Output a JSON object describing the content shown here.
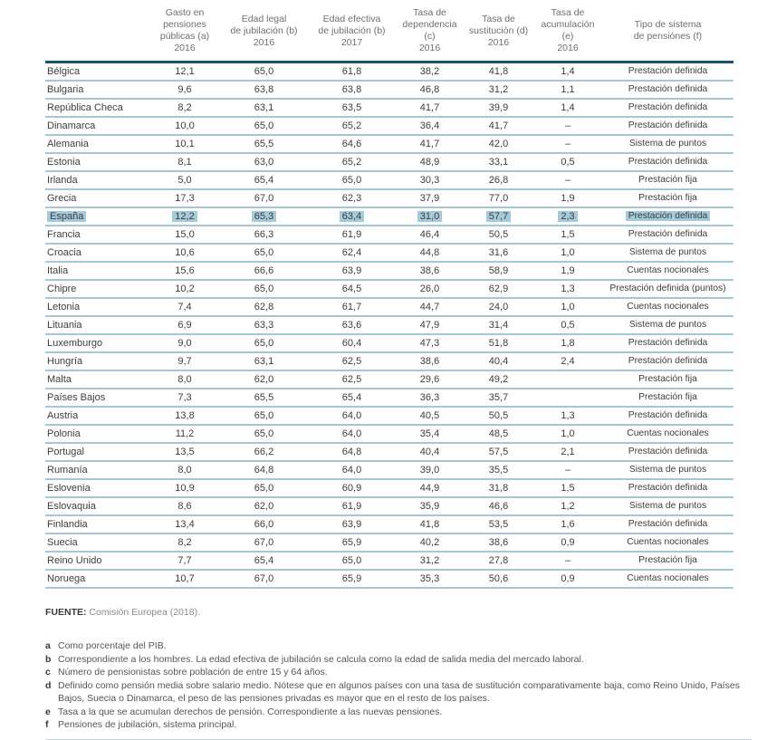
{
  "chart_data": {
    "type": "table",
    "title": "",
    "columns": [
      "",
      "Gasto en\npensiones\npúblicas (a)\n2016",
      "Edad legal\nde jubilación (b)\n2016",
      "Edad efectiva\nde jubilación (b)\n2017",
      "Tasa de\ndependencia (c)\n2016",
      "Tasa de\nsustitución (d)\n2016",
      "Tasa de\nacumulación (e)\n2016",
      "Tipo de sistema\nde pensiónes (f)"
    ],
    "column_keys": [
      "pais",
      "gasto",
      "edad-legal",
      "edad-efectiva",
      "dependencia",
      "sustitucion",
      "acumulacion",
      "tipo"
    ],
    "rows": [
      {
        "highlighted": false,
        "cells": [
          "Bélgica",
          "12,1",
          "65,0",
          "61,8",
          "38,2",
          "41,8",
          "1,4",
          "Prestación definida"
        ]
      },
      {
        "highlighted": false,
        "cells": [
          "Bulgaria",
          "9,6",
          "63,8",
          "63,8",
          "46,8",
          "31,2",
          "1,1",
          "Prestación definida"
        ]
      },
      {
        "highlighted": false,
        "cells": [
          "República Checa",
          "8,2",
          "63,1",
          "63,5",
          "41,7",
          "39,9",
          "1,4",
          "Prestación definida"
        ]
      },
      {
        "highlighted": false,
        "cells": [
          "Dinamarca",
          "10,0",
          "65,0",
          "65,2",
          "36,4",
          "41,7",
          "–",
          "Prestación definida"
        ]
      },
      {
        "highlighted": false,
        "cells": [
          "Alemania",
          "10,1",
          "65,5",
          "64,6",
          "41,7",
          "42,0",
          "–",
          "Sistema de puntos"
        ]
      },
      {
        "highlighted": false,
        "cells": [
          "Estonia",
          "8,1",
          "63,0",
          "65,2",
          "48,9",
          "33,1",
          "0,5",
          "Prestación definida"
        ]
      },
      {
        "highlighted": false,
        "cells": [
          "Irlanda",
          "5,0",
          "65,4",
          "65,0",
          "30,3",
          "26,8",
          "–",
          "Prestación fija"
        ]
      },
      {
        "highlighted": false,
        "cells": [
          "Grecia",
          "17,3",
          "67,0",
          "62,3",
          "37,9",
          "77,0",
          "1,9",
          "Prestación fija"
        ]
      },
      {
        "highlighted": true,
        "cells": [
          "España",
          "12,2",
          "65,3",
          "63,4",
          "31,0",
          "57,7",
          "2,3",
          "Prestación definida"
        ]
      },
      {
        "highlighted": false,
        "cells": [
          "Francia",
          "15,0",
          "66,3",
          "61,9",
          "46,4",
          "50,5",
          "1,5",
          "Prestación definida"
        ]
      },
      {
        "highlighted": false,
        "cells": [
          "Croacia",
          "10,6",
          "65,0",
          "62,4",
          "44,8",
          "31,6",
          "1,0",
          "Sistema de puntos"
        ]
      },
      {
        "highlighted": false,
        "cells": [
          "Italia",
          "15,6",
          "66,6",
          "63,9",
          "38,6",
          "58,9",
          "1,9",
          "Cuentas nocionales"
        ]
      },
      {
        "highlighted": false,
        "cells": [
          "Chipre",
          "10,2",
          "65,0",
          "64,5",
          "26,0",
          "62,9",
          "1,3",
          "Prestación definida (puntos)"
        ]
      },
      {
        "highlighted": false,
        "cells": [
          "Letonia",
          "7,4",
          "62,8",
          "61,7",
          "44,7",
          "24,0",
          "1,0",
          "Cuentas nocionales"
        ]
      },
      {
        "highlighted": false,
        "cells": [
          "Lituania",
          "6,9",
          "63,3",
          "63,6",
          "47,9",
          "31,4",
          "0,5",
          "Sistema de puntos"
        ]
      },
      {
        "highlighted": false,
        "cells": [
          "Luxemburgo",
          "9,0",
          "65,0",
          "60,4",
          "47,3",
          "51,8",
          "1,8",
          "Prestación definida"
        ]
      },
      {
        "highlighted": false,
        "cells": [
          "Hungría",
          "9,7",
          "63,1",
          "62,5",
          "38,6",
          "40,4",
          "2,4",
          "Prestación definida"
        ]
      },
      {
        "highlighted": false,
        "cells": [
          "Malta",
          "8,0",
          "62,0",
          "62,5",
          "29,6",
          "49,2",
          "",
          "Prestación fija"
        ]
      },
      {
        "highlighted": false,
        "cells": [
          "Países Bajos",
          "7,3",
          "65,5",
          "65,4",
          "36,3",
          "35,7",
          "",
          "Prestación fija"
        ]
      },
      {
        "highlighted": false,
        "cells": [
          "Austria",
          "13,8",
          "65,0",
          "64,0",
          "40,5",
          "50,5",
          "1,3",
          "Prestación definida"
        ]
      },
      {
        "highlighted": false,
        "cells": [
          "Polonia",
          "11,2",
          "65,0",
          "64,0",
          "35,4",
          "48,5",
          "1,0",
          "Cuentas nocionales"
        ]
      },
      {
        "highlighted": false,
        "cells": [
          "Portugal",
          "13,5",
          "66,2",
          "64,8",
          "40,4",
          "57,5",
          "2,1",
          "Prestación definida"
        ]
      },
      {
        "highlighted": false,
        "cells": [
          "Rumanía",
          "8,0",
          "64,8",
          "64,0",
          "39,0",
          "35,5",
          "–",
          "Sistema de puntos"
        ]
      },
      {
        "highlighted": false,
        "cells": [
          "Eslovenia",
          "10,9",
          "65,0",
          "60,9",
          "44,9",
          "31,8",
          "1,5",
          "Prestación definida"
        ]
      },
      {
        "highlighted": false,
        "cells": [
          "Eslovaquia",
          "8,6",
          "62,0",
          "61,9",
          "35,9",
          "46,6",
          "1,2",
          "Sistema de puntos"
        ]
      },
      {
        "highlighted": false,
        "cells": [
          "Finlandia",
          "13,4",
          "66,0",
          "63,9",
          "41,8",
          "53,5",
          "1,6",
          "Prestación definida"
        ]
      },
      {
        "highlighted": false,
        "cells": [
          "Suecia",
          "8,2",
          "67,0",
          "65,9",
          "40,2",
          "38,6",
          "0,9",
          "Cuentas nocionales"
        ]
      },
      {
        "highlighted": false,
        "cells": [
          "Reino Unido",
          "7,7",
          "65,4",
          "65,0",
          "31,2",
          "27,8",
          "–",
          "Prestación fija"
        ]
      },
      {
        "highlighted": false,
        "cells": [
          "Noruega",
          "10,7",
          "67,0",
          "65,9",
          "35,3",
          "50,6",
          "0,9",
          "Cuentas nocionales"
        ]
      }
    ],
    "highlighted_row": "España"
  },
  "source": {
    "label": "FUENTE:",
    "text": " Comisión Europea (2018)."
  },
  "footnotes": [
    {
      "marker": "a",
      "text": "Como porcentaje del PIB."
    },
    {
      "marker": "b",
      "text": "Correspondiente a los hombres. La edad efectiva de jubilación se calcula como la edad de salida media del mercado laboral."
    },
    {
      "marker": "c",
      "text": "Número de pensionistas sobre población de entre 15 y 64 años."
    },
    {
      "marker": "d",
      "text": "Definido como pensión media sobre salario medio. Nótese que en algunos países con una tasa de sustitución comparativamente baja, como Reino Unido, Países Bajos, Suecia o Dinamarca, el peso de las pensiones privadas es mayor que en el resto de los países."
    },
    {
      "marker": "e",
      "text": "Tasa a la que se acumulan derechos de pensión. Correspondiente a las nuevas pensiones."
    },
    {
      "marker": "f",
      "text": "Pensiones de jubilación, sistema principal."
    }
  ],
  "colors": {
    "header_rule": "#14566e",
    "row_rule": "#a6c8d4",
    "highlight": "#a4cbdc"
  }
}
